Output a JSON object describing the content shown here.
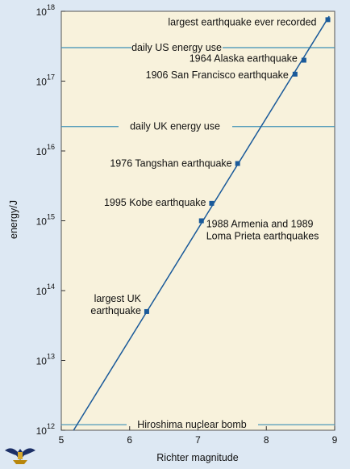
{
  "chart_data": {
    "type": "line",
    "xlabel": "Richter magnitude",
    "ylabel": "energy/J",
    "xlim": [
      5,
      9
    ],
    "ylim_log10": [
      12,
      18
    ],
    "y_scale": "log",
    "x_ticks": [
      "5",
      "6",
      "7",
      "8",
      "9"
    ],
    "y_ticks": [
      {
        "base": "10",
        "exp": "12"
      },
      {
        "base": "10",
        "exp": "13"
      },
      {
        "base": "10",
        "exp": "14"
      },
      {
        "base": "10",
        "exp": "15"
      },
      {
        "base": "10",
        "exp": "16"
      },
      {
        "base": "10",
        "exp": "17"
      },
      {
        "base": "10",
        "exp": "18"
      }
    ],
    "line": {
      "x": [
        5.18,
        8.92
      ],
      "y_log10": [
        12.0,
        17.93
      ]
    },
    "points": [
      {
        "label": "largest earthquake ever recorded",
        "x": 8.9,
        "y_log10": 17.88
      },
      {
        "label": "1964 Alaska earthquake",
        "x": 8.55,
        "y_log10": 17.3
      },
      {
        "label": "1906 San Francisco earthquake",
        "x": 8.42,
        "y_log10": 17.1
      },
      {
        "label": "1976 Tangshan earthquake",
        "x": 7.58,
        "y_log10": 15.82
      },
      {
        "label": "1995 Kobe earthquake",
        "x": 7.2,
        "y_log10": 15.25
      },
      {
        "label": [
          "1988 Armenia and 1989",
          "Loma Prieta earthquakes"
        ],
        "x": 7.05,
        "y_log10": 15.0
      },
      {
        "label": [
          "largest UK",
          "earthquake"
        ],
        "x": 6.25,
        "y_log10": 13.7
      }
    ],
    "reference_lines": [
      {
        "label": "daily US energy use",
        "y_log10": 17.48
      },
      {
        "label": "daily UK energy use",
        "y_log10": 16.35
      },
      {
        "label": "Hiroshima nuclear bomb",
        "y_log10": 12.08
      }
    ],
    "grid": false,
    "colors": {
      "plot_background": "#f8f2dc",
      "page_background": "#dde8f3",
      "line": "#1a5a9a",
      "marker": "#1a5a9a",
      "reference_line": "#3b8fb5"
    }
  }
}
